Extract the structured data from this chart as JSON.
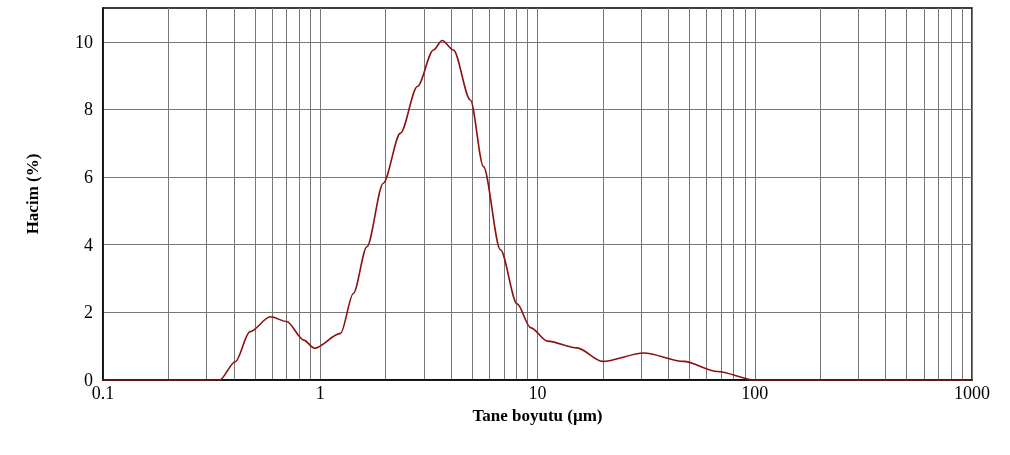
{
  "chart_data": {
    "type": "line",
    "xlabel": "Tane boyutu (µm)",
    "ylabel": "Hacim (%)",
    "log": "x",
    "grid": true,
    "marker": "none",
    "line_style": "solid",
    "x": [
      0.1,
      0.344,
      0.406,
      0.475,
      0.589,
      0.7,
      0.84,
      0.94,
      1.24,
      1.42,
      1.64,
      1.95,
      2.34,
      2.8,
      3.32,
      3.64,
      4.1,
      4.91,
      5.64,
      6.75,
      8.06,
      9.29,
      11.1,
      15.2,
      19.9,
      30.9,
      47.1,
      67.3,
      100,
      1000
    ],
    "series": [
      {
        "color": "#8b1010",
        "values": [
          0,
          0,
          0.54,
          1.43,
          1.87,
          1.73,
          1.18,
          0.94,
          1.38,
          2.56,
          3.94,
          5.82,
          7.3,
          8.68,
          9.76,
          10.04,
          9.76,
          8.28,
          6.31,
          3.85,
          2.25,
          1.55,
          1.15,
          0.95,
          0.55,
          0.8,
          0.55,
          0.25,
          0,
          0
        ]
      }
    ],
    "xlim": [
      0.1,
      1000
    ],
    "xticks": [
      0.1,
      {
        "value": 0.2,
        "label": null
      },
      {
        "value": 0.3,
        "label": null
      },
      {
        "value": 0.4,
        "label": null
      },
      {
        "value": 0.5,
        "label": null
      },
      {
        "value": 0.6,
        "label": null
      },
      {
        "value": 0.7,
        "label": null
      },
      {
        "value": 0.8,
        "label": null
      },
      {
        "value": 0.9,
        "label": null
      },
      1,
      {
        "value": 2,
        "label": null
      },
      {
        "value": 3,
        "label": null
      },
      {
        "value": 4,
        "label": null
      },
      {
        "value": 5,
        "label": null
      },
      {
        "value": 6,
        "label": null
      },
      {
        "value": 7,
        "label": null
      },
      {
        "value": 8,
        "label": null
      },
      {
        "value": 9,
        "label": null
      },
      10,
      {
        "value": 20,
        "label": null
      },
      {
        "value": 30,
        "label": null
      },
      {
        "value": 40,
        "label": null
      },
      {
        "value": 50,
        "label": null
      },
      {
        "value": 60,
        "label": null
      },
      {
        "value": 70,
        "label": null
      },
      {
        "value": 80,
        "label": null
      },
      {
        "value": 90,
        "label": null
      },
      100,
      {
        "value": 200,
        "label": null
      },
      {
        "value": 300,
        "label": null
      },
      {
        "value": 400,
        "label": null
      },
      {
        "value": 500,
        "label": null
      },
      {
        "value": 600,
        "label": null
      },
      {
        "value": 700,
        "label": null
      },
      {
        "value": 800,
        "label": null
      },
      {
        "value": 900,
        "label": null
      },
      1000
    ],
    "ylim": [
      0,
      11
    ],
    "yticks": [
      0,
      2,
      4,
      6,
      8,
      10
    ]
  }
}
